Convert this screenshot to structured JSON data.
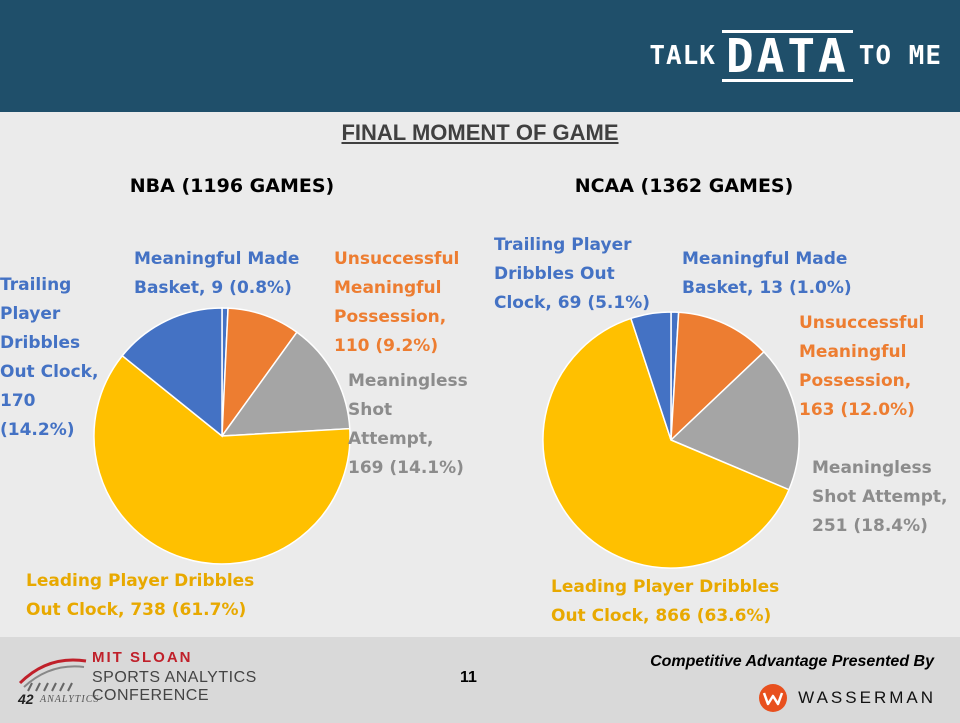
{
  "header": {
    "brand": {
      "part1": "TALK",
      "part2": "DATA",
      "part3": "TO ME"
    }
  },
  "page_title": "FINAL MOMENT OF GAME",
  "colors": {
    "header_bg": "#1f4f6a",
    "made_basket": "#4472c4",
    "unsuccessful": "#ed7d31",
    "shot_attempt": "#a5a5a5",
    "leading_dribble": "#ffc000",
    "trailing_dribble": "#4472c4"
  },
  "chart_data": [
    {
      "type": "pie",
      "title": "NBA (1196 GAMES)",
      "categories": [
        "Meaningful Made Basket",
        "Unsuccessful Meaningful Possession",
        "Meaningless Shot Attempt",
        "Leading Player Dribbles Out Clock",
        "Trailing Player Dribbles Out Clock"
      ],
      "values": [
        9,
        110,
        169,
        738,
        170
      ],
      "percents": [
        0.8,
        9.2,
        14.1,
        61.7,
        14.2
      ],
      "labels": [
        {
          "lines": [
            "Meaningful Made",
            "Basket, 9 (0.8%)"
          ]
        },
        {
          "lines": [
            "Unsuccessful",
            "Meaningful",
            "Possession,",
            "110 (9.2%)"
          ]
        },
        {
          "lines": [
            "Meaningless",
            "Shot",
            "Attempt,",
            "169 (14.1%)"
          ]
        },
        {
          "lines": [
            "Leading Player Dribbles",
            "Out Clock, 738 (61.7%)"
          ]
        },
        {
          "lines": [
            "Trailing",
            "Player",
            "Dribbles",
            "Out Clock,",
            "170",
            "(14.2%)"
          ]
        }
      ]
    },
    {
      "type": "pie",
      "title": "NCAA (1362 GAMES)",
      "categories": [
        "Meaningful Made Basket",
        "Unsuccessful Meaningful Possession",
        "Meaningless Shot Attempt",
        "Leading Player Dribbles Out Clock",
        "Trailing Player Dribbles Out Clock"
      ],
      "values": [
        13,
        163,
        251,
        866,
        69
      ],
      "percents": [
        1.0,
        12.0,
        18.4,
        63.6,
        5.1
      ],
      "labels": [
        {
          "lines": [
            "Meaningful Made",
            "Basket, 13 (1.0%)"
          ]
        },
        {
          "lines": [
            "Unsuccessful",
            "Meaningful",
            "Possession,",
            "163 (12.0%)"
          ]
        },
        {
          "lines": [
            "Meaningless",
            "Shot Attempt,",
            "251 (18.4%)"
          ]
        },
        {
          "lines": [
            "Leading Player Dribbles",
            "Out Clock, 866 (63.6%)"
          ]
        },
        {
          "lines": [
            "Trailing Player",
            "Dribbles Out",
            "Clock, 69 (5.1%)"
          ]
        }
      ]
    }
  ],
  "footer": {
    "conference_line1": "MIT SLOAN",
    "conference_line2": "SPORTS ANALYTICS CONFERENCE",
    "conference_num": "42",
    "conference_sub": "ANALYTICS",
    "page_number": "11",
    "presented_by": "Competitive Advantage Presented By",
    "sponsor": "WASSERMAN"
  }
}
